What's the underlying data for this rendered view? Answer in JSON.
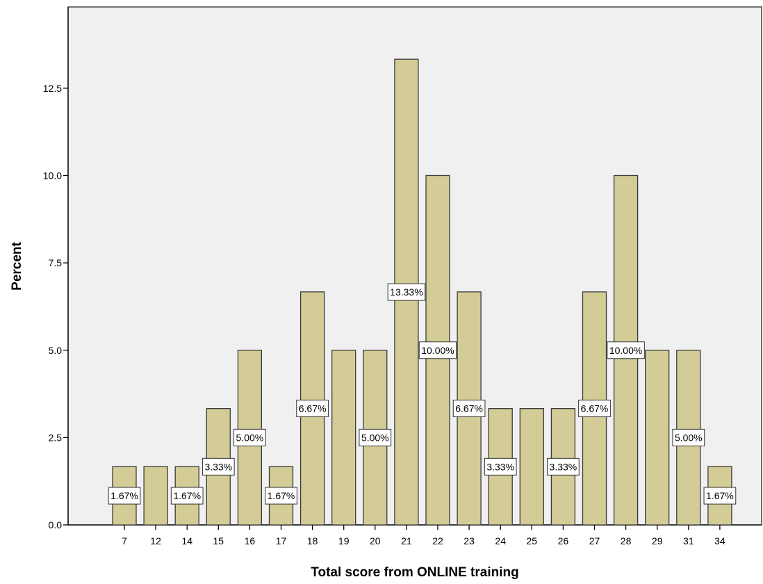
{
  "chart_data": {
    "type": "bar",
    "xlabel": "Total score from ONLINE training",
    "ylabel": "Percent",
    "categories": [
      "7",
      "12",
      "14",
      "15",
      "16",
      "17",
      "18",
      "19",
      "20",
      "21",
      "22",
      "23",
      "24",
      "25",
      "26",
      "27",
      "28",
      "29",
      "31",
      "34"
    ],
    "values": [
      1.67,
      1.67,
      1.67,
      3.33,
      5.0,
      1.67,
      6.67,
      5.0,
      5.0,
      13.33,
      10.0,
      6.67,
      3.33,
      3.33,
      3.33,
      6.67,
      10.0,
      5.0,
      5.0,
      1.67
    ],
    "data_labels": [
      {
        "category": "7",
        "text": "1.67%"
      },
      {
        "category": "14",
        "text": "1.67%"
      },
      {
        "category": "15",
        "text": "3.33%"
      },
      {
        "category": "16",
        "text": "5.00%"
      },
      {
        "category": "17",
        "text": "1.67%"
      },
      {
        "category": "18",
        "text": "6.67%"
      },
      {
        "category": "20",
        "text": "5.00%"
      },
      {
        "category": "21",
        "text": "13.33%"
      },
      {
        "category": "22",
        "text": "10.00%"
      },
      {
        "category": "23",
        "text": "6.67%"
      },
      {
        "category": "24",
        "text": "3.33%"
      },
      {
        "category": "26",
        "text": "3.33%"
      },
      {
        "category": "27",
        "text": "6.67%"
      },
      {
        "category": "28",
        "text": "10.00%"
      },
      {
        "category": "31",
        "text": "5.00%"
      },
      {
        "category": "34",
        "text": "1.67%"
      }
    ],
    "yticks": [
      "0.0",
      "2.5",
      "5.0",
      "7.5",
      "10.0",
      "12.5"
    ],
    "ylim": [
      0,
      15
    ],
    "grid": false,
    "legend": "none",
    "colors": {
      "bar_fill": "#d3cc97",
      "bar_edge": "#3a3a3a",
      "plot_background": "#f0f0f0"
    }
  }
}
